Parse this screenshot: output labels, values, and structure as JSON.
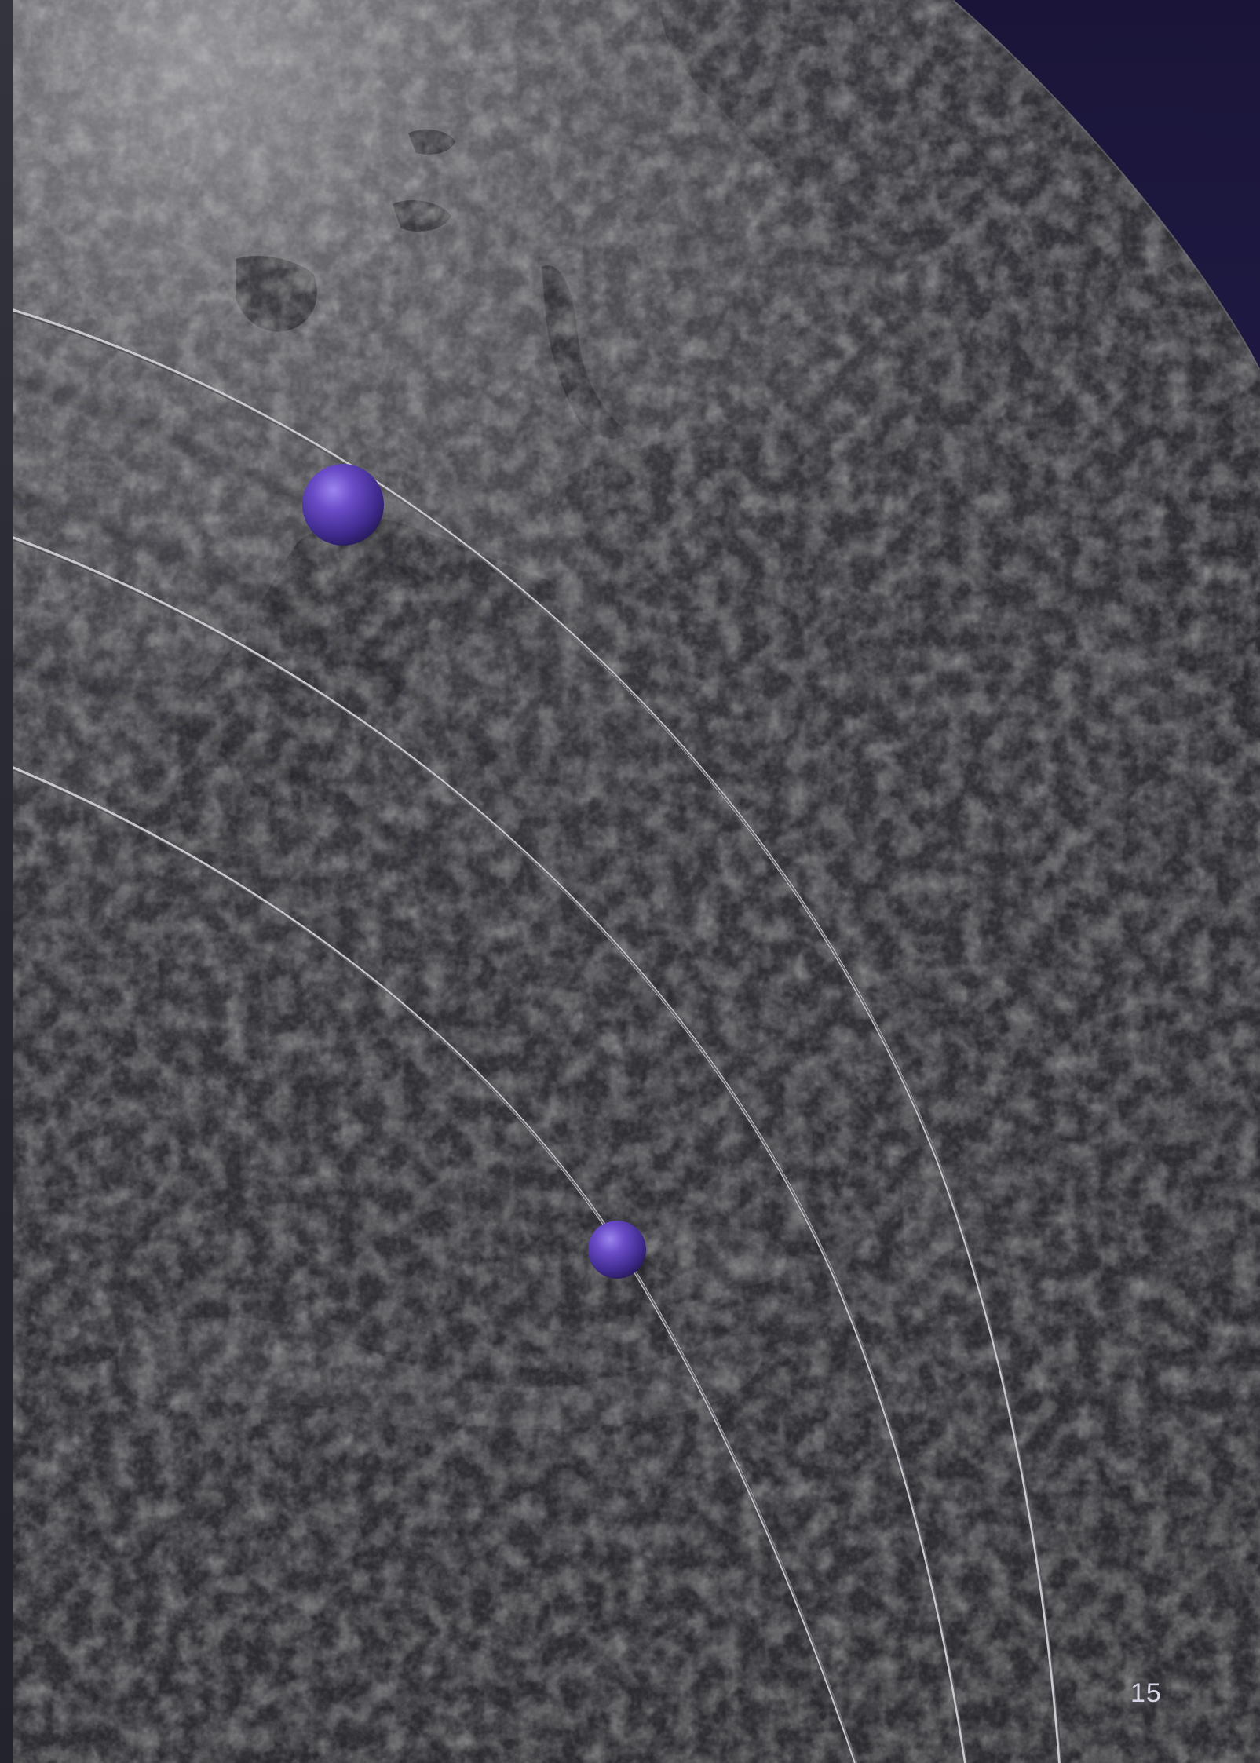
{
  "page": {
    "number": "15"
  },
  "image": {
    "colors": {
      "space": "#221c4a",
      "globe_light": "#8a8a90",
      "globe_dark": "#18181d",
      "orbit_line": "#d9d9de",
      "orbit_sphere": "#5a3fb0"
    }
  }
}
